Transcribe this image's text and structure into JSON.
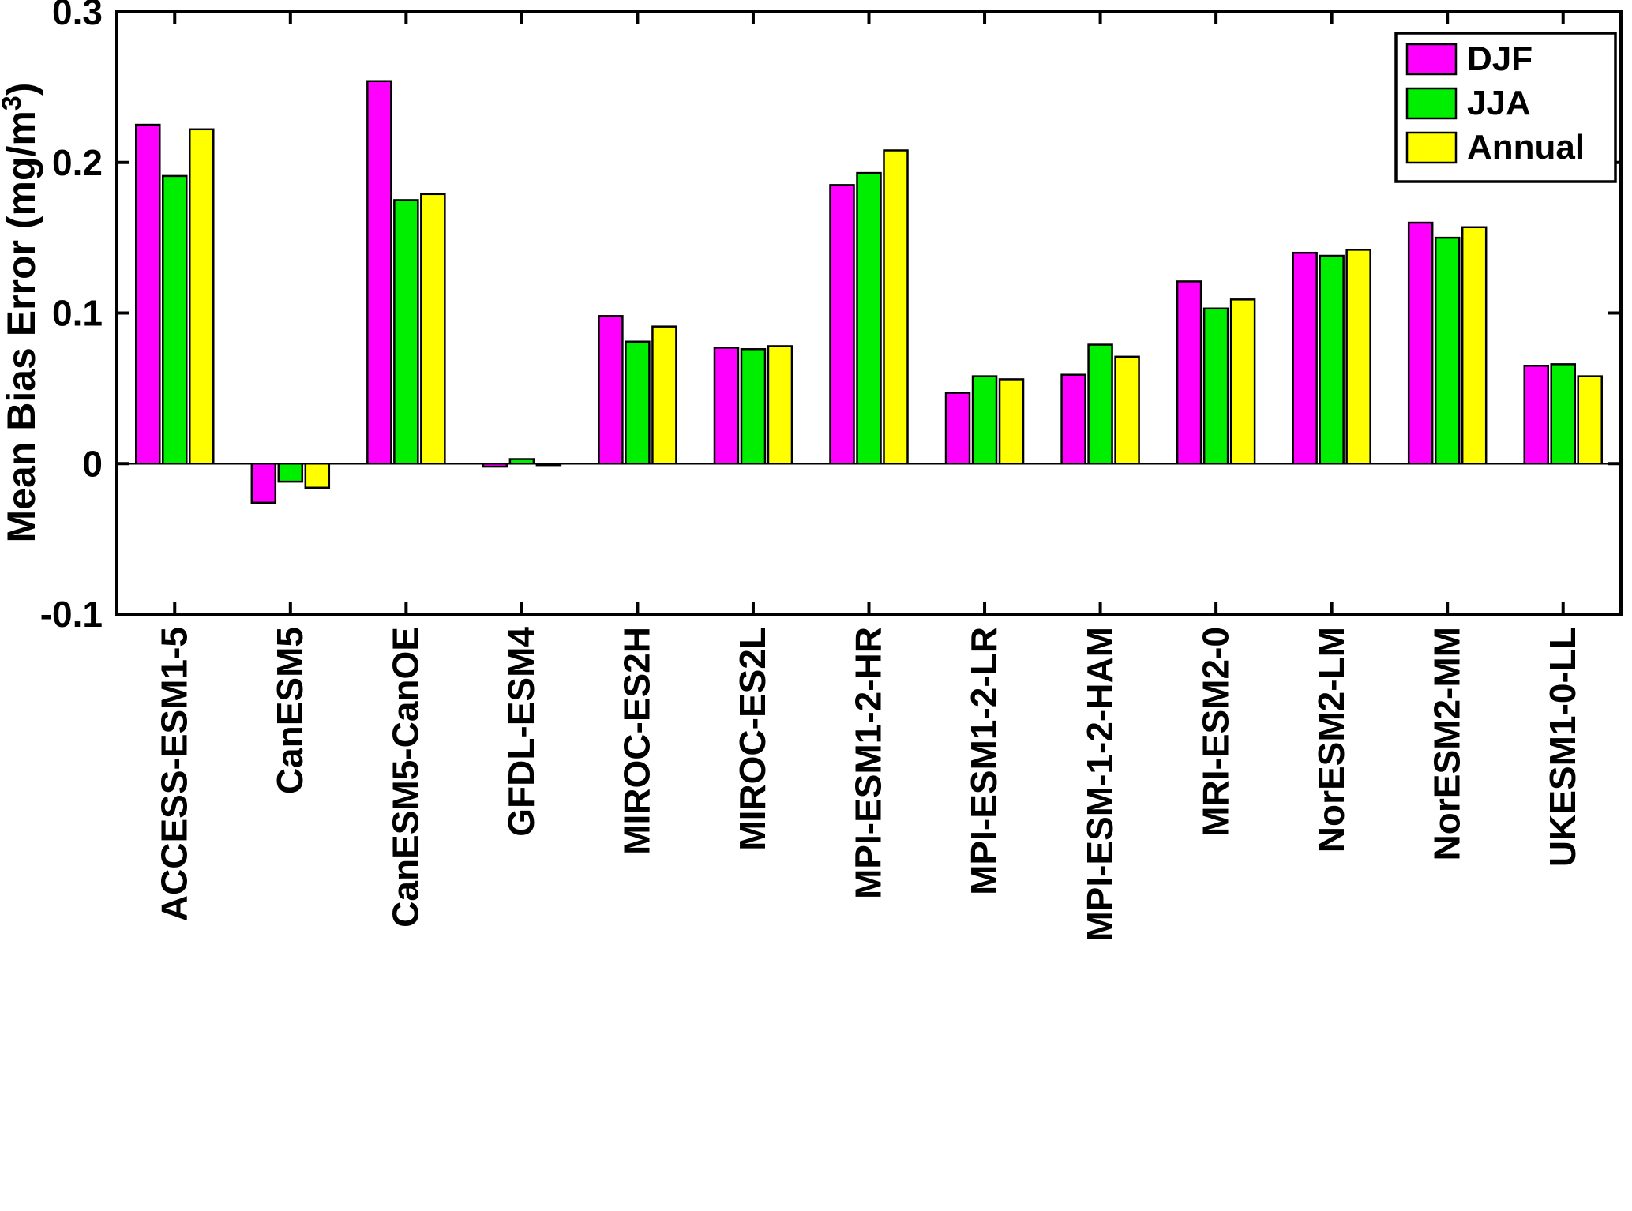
{
  "figure": {
    "background": "#FFFFFF",
    "axis_color": "#000000"
  },
  "chart_data": {
    "type": "bar",
    "title": "",
    "xlabel": "",
    "ylabel": "Mean Bias Error (mg/m³)",
    "ylabel_parts": {
      "pre": "Mean Bias Error (mg/m",
      "sup": "3",
      "post": ")"
    },
    "ylim": [
      -0.1,
      0.3
    ],
    "grid": false,
    "legend_position": "top-right",
    "bar_edge_color": "#000000",
    "yticks": [
      {
        "value": -0.1,
        "label": "-0.1"
      },
      {
        "value": 0,
        "label": "0"
      },
      {
        "value": 0.1,
        "label": "0.1"
      },
      {
        "value": 0.2,
        "label": "0.2"
      },
      {
        "value": 0.3,
        "label": "0.3"
      }
    ],
    "categories": [
      "ACCESS-ESM1-5",
      "CanESM5",
      "CanESM5-CanOE",
      "GFDL-ESM4",
      "MIROC-ES2H",
      "MIROC-ES2L",
      "MPI-ESM1-2-HR",
      "MPI-ESM1-2-LR",
      "MPI-ESM-1-2-HAM",
      "MRI-ESM2-0",
      "NorESM2-LM",
      "NorESM2-MM",
      "UKESM1-0-LL"
    ],
    "series": [
      {
        "name": "DJF",
        "color": "#FF00FF",
        "values": [
          0.225,
          -0.026,
          0.254,
          -0.002,
          0.098,
          0.077,
          0.185,
          0.047,
          0.059,
          0.121,
          0.14,
          0.16,
          0.065
        ]
      },
      {
        "name": "JJA",
        "color": "#00EE00",
        "values": [
          0.191,
          -0.012,
          0.175,
          0.003,
          0.081,
          0.076,
          0.193,
          0.058,
          0.079,
          0.103,
          0.138,
          0.15,
          0.066
        ]
      },
      {
        "name": "Annual",
        "color": "#FFFF00",
        "values": [
          0.222,
          -0.016,
          0.179,
          -0.001,
          0.091,
          0.078,
          0.208,
          0.056,
          0.071,
          0.109,
          0.142,
          0.157,
          0.058
        ]
      }
    ]
  }
}
